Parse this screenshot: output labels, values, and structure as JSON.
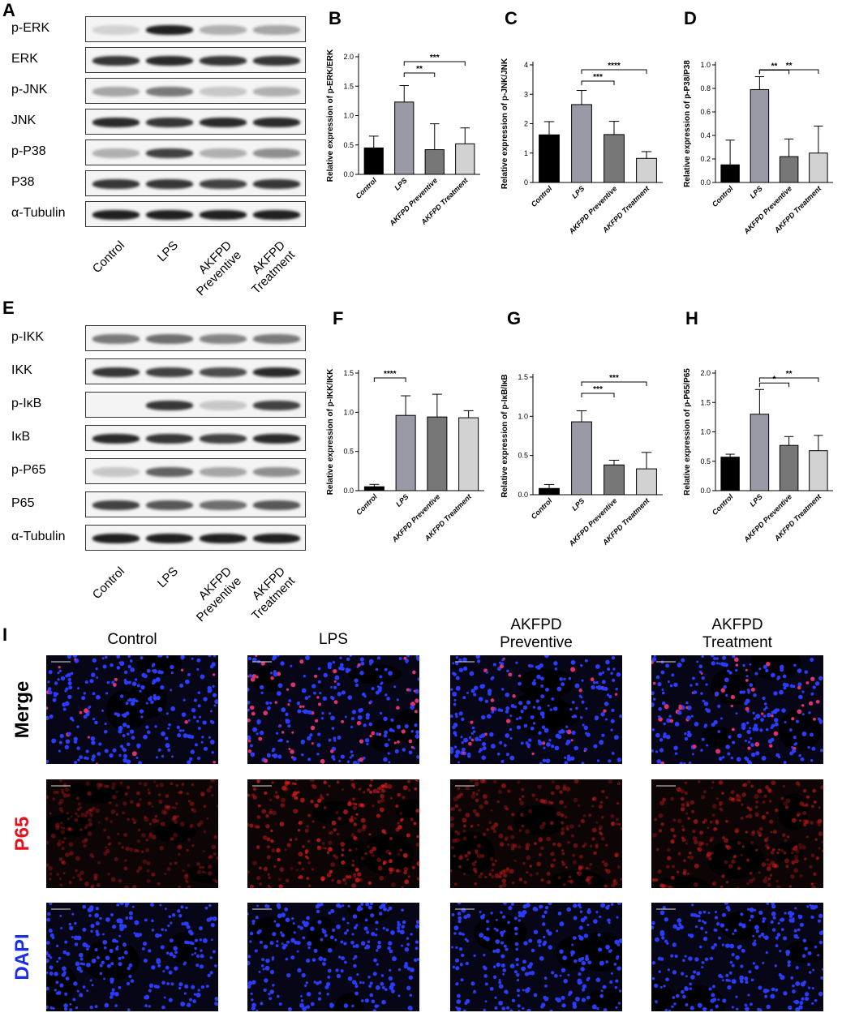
{
  "panels": {
    "A": "A",
    "B": "B",
    "C": "C",
    "D": "D",
    "E": "E",
    "F": "F",
    "G": "G",
    "H": "H",
    "I": "I"
  },
  "blot_A": {
    "labels": [
      "p-ERK",
      "ERK",
      "p-JNK",
      "JNK",
      "p-P38",
      "P38",
      "α-Tubulin"
    ],
    "lanes": [
      "Control",
      "LPS",
      "AKFPD\nPreventive",
      "AKFPD\nTreatment"
    ]
  },
  "blot_E": {
    "labels": [
      "p-IKK",
      "IKK",
      "p-IκB",
      "IκB",
      "p-P65",
      "P65",
      "α-Tubulin"
    ],
    "lanes": [
      "Control",
      "LPS",
      "AKFPD\nPreventive",
      "AKFPD\nTreatment"
    ]
  },
  "chart_data": [
    {
      "panel": "B",
      "type": "bar",
      "categories": [
        "Control",
        "LPS",
        "AKFPD Preventive",
        "AKFPD Treatment"
      ],
      "values": [
        0.45,
        1.23,
        0.42,
        0.52
      ],
      "errors": [
        0.2,
        0.28,
        0.44,
        0.27
      ],
      "ylabel": "Relative expression of p-ERK/ERK",
      "ylim": [
        0,
        2.0
      ],
      "yticks": [
        "0.0",
        "0.5",
        "1.0",
        "1.5",
        "2.0"
      ],
      "colors": [
        "#000000",
        "#9a9aa6",
        "#777777",
        "#d2d2d2"
      ],
      "significance": [
        {
          "from": 1,
          "to": 2,
          "label": "**"
        },
        {
          "from": 1,
          "to": 3,
          "label": "***"
        }
      ]
    },
    {
      "panel": "C",
      "type": "bar",
      "categories": [
        "Control",
        "LPS",
        "AKFPD Preventive",
        "AKFPD Treatment"
      ],
      "values": [
        1.62,
        2.65,
        1.63,
        0.82
      ],
      "errors": [
        0.45,
        0.48,
        0.45,
        0.23
      ],
      "ylabel": "Relative expression of p-JNK/JNK",
      "ylim": [
        0,
        4
      ],
      "yticks": [
        "0",
        "1",
        "2",
        "3",
        "4"
      ],
      "colors": [
        "#000000",
        "#9a9aa6",
        "#777777",
        "#d2d2d2"
      ],
      "significance": [
        {
          "from": 1,
          "to": 2,
          "label": "***"
        },
        {
          "from": 1,
          "to": 3,
          "label": "****"
        }
      ]
    },
    {
      "panel": "D",
      "type": "bar",
      "categories": [
        "Control",
        "LPS",
        "AKFPD Preventive",
        "AKFPD Treatment"
      ],
      "values": [
        0.15,
        0.79,
        0.22,
        0.25
      ],
      "errors": [
        0.21,
        0.11,
        0.15,
        0.23
      ],
      "ylabel": "Relative expression of p-P38/P38",
      "ylim": [
        0,
        1.0
      ],
      "yticks": [
        "0.0",
        "0.2",
        "0.4",
        "0.6",
        "0.8",
        "1.0"
      ],
      "colors": [
        "#000000",
        "#9a9aa6",
        "#777777",
        "#d2d2d2"
      ],
      "significance": [
        {
          "from": 1,
          "to": 2,
          "label": "**"
        },
        {
          "from": 1,
          "to": 3,
          "label": "**"
        }
      ]
    },
    {
      "panel": "F",
      "type": "bar",
      "categories": [
        "Control",
        "LPS",
        "AKFPD Preventive",
        "AKFPD Treatment"
      ],
      "values": [
        0.05,
        0.96,
        0.94,
        0.93
      ],
      "errors": [
        0.03,
        0.25,
        0.29,
        0.09
      ],
      "ylabel": "Relative expression of p-IKK/IKK",
      "ylim": [
        0,
        1.5
      ],
      "yticks": [
        "0.0",
        "0.5",
        "1.0",
        "1.5"
      ],
      "colors": [
        "#000000",
        "#9a9aa6",
        "#777777",
        "#d2d2d2"
      ],
      "significance": [
        {
          "from": 0,
          "to": 1,
          "label": "****"
        }
      ]
    },
    {
      "panel": "G",
      "type": "bar",
      "categories": [
        "Control",
        "LPS",
        "AKFPD Preventive",
        "AKFPD Treatment"
      ],
      "values": [
        0.08,
        0.93,
        0.38,
        0.33
      ],
      "errors": [
        0.05,
        0.14,
        0.06,
        0.21
      ],
      "ylabel": "Relative expression of p-IκB/IκB",
      "ylim": [
        0,
        1.5
      ],
      "yticks": [
        "0.0",
        "0.5",
        "1.0",
        "1.5"
      ],
      "colors": [
        "#000000",
        "#9a9aa6",
        "#777777",
        "#d2d2d2"
      ],
      "significance": [
        {
          "from": 1,
          "to": 2,
          "label": "***"
        },
        {
          "from": 1,
          "to": 3,
          "label": "***"
        }
      ]
    },
    {
      "panel": "H",
      "type": "bar",
      "categories": [
        "Control",
        "LPS",
        "AKFPD Preventive",
        "AKFPD Treatment"
      ],
      "values": [
        0.57,
        1.3,
        0.77,
        0.68
      ],
      "errors": [
        0.05,
        0.42,
        0.15,
        0.26
      ],
      "ylabel": "Relative expression of p-P65/P65",
      "ylim": [
        0,
        2.0
      ],
      "yticks": [
        "0.0",
        "0.5",
        "1.0",
        "1.5",
        "2.0"
      ],
      "colors": [
        "#000000",
        "#9a9aa6",
        "#777777",
        "#d2d2d2"
      ],
      "significance": [
        {
          "from": 1,
          "to": 2,
          "label": "*"
        },
        {
          "from": 1,
          "to": 3,
          "label": "**"
        }
      ]
    }
  ],
  "immuno": {
    "columns": [
      "Control",
      "LPS",
      "AKFPD\nPreventive",
      "AKFPD\nTreatment"
    ],
    "rows": [
      {
        "label": "Merge",
        "color": "#000000"
      },
      {
        "label": "P65",
        "color": "#e0141e"
      },
      {
        "label": "DAPI",
        "color": "#1a2ee6"
      }
    ]
  }
}
